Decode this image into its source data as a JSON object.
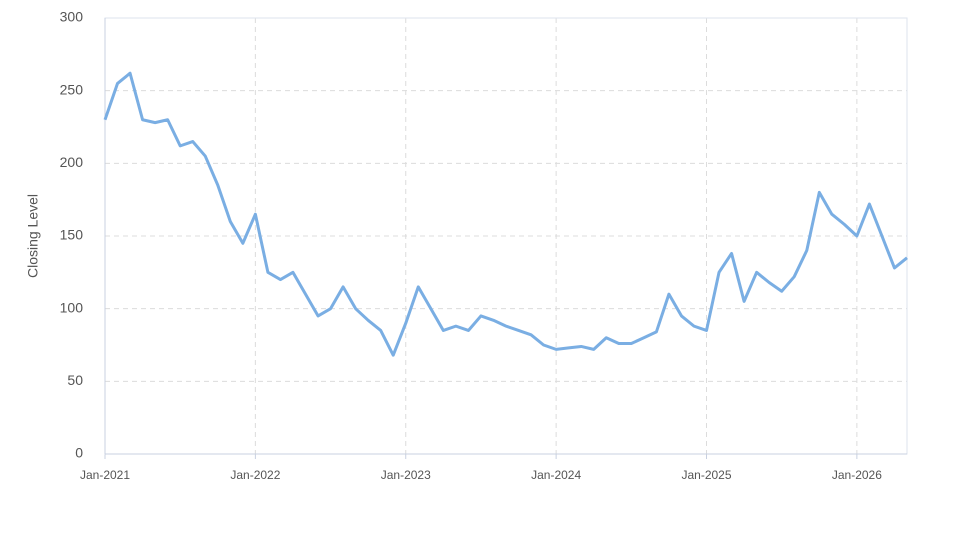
{
  "chart_data": {
    "type": "line",
    "y_label": "Closing Level",
    "x": [
      "2021-01",
      "2021-02",
      "2021-03",
      "2021-04",
      "2021-05",
      "2021-06",
      "2021-07",
      "2021-08",
      "2021-09",
      "2021-10",
      "2021-11",
      "2021-12",
      "2022-01",
      "2022-02",
      "2022-03",
      "2022-04",
      "2022-05",
      "2022-06",
      "2022-07",
      "2022-08",
      "2022-09",
      "2022-10",
      "2022-11",
      "2022-12",
      "2023-01",
      "2023-02",
      "2023-03",
      "2023-04",
      "2023-05",
      "2023-06",
      "2023-07",
      "2023-08",
      "2023-09",
      "2023-10",
      "2023-11",
      "2023-12",
      "2024-01",
      "2024-02",
      "2024-03",
      "2024-04",
      "2024-05",
      "2024-06",
      "2024-07",
      "2024-08",
      "2024-09",
      "2024-10",
      "2024-11",
      "2024-12",
      "2025-01",
      "2025-02",
      "2025-03",
      "2025-04",
      "2025-05",
      "2025-06",
      "2025-07",
      "2025-08",
      "2025-09",
      "2025-10",
      "2025-11",
      "2025-12",
      "2026-01",
      "2026-02",
      "2026-03",
      "2026-04",
      "2026-05"
    ],
    "series": [
      {
        "name": "Closing Level",
        "color": "#7aaee3",
        "values": [
          230,
          255,
          262,
          230,
          228,
          230,
          212,
          215,
          205,
          185,
          160,
          145,
          165,
          125,
          120,
          125,
          110,
          95,
          100,
          115,
          100,
          92,
          85,
          68,
          90,
          115,
          100,
          85,
          88,
          85,
          95,
          92,
          88,
          85,
          82,
          75,
          72,
          73,
          74,
          72,
          80,
          76,
          76,
          80,
          84,
          110,
          95,
          88,
          85,
          125,
          138,
          105,
          125,
          118,
          112,
          122,
          140,
          180,
          165,
          158,
          150,
          172,
          150,
          128,
          135
        ]
      }
    ],
    "xlim": [
      "2021-01",
      "2026-05"
    ],
    "xticks": [
      {
        "value": "2021-01",
        "label": "Jan-2021"
      },
      {
        "value": "2022-01",
        "label": "Jan-2022"
      },
      {
        "value": "2023-01",
        "label": "Jan-2023"
      },
      {
        "value": "2024-01",
        "label": "Jan-2024"
      },
      {
        "value": "2025-01",
        "label": "Jan-2025"
      },
      {
        "value": "2026-01",
        "label": "Jan-2026"
      }
    ],
    "ylim": [
      0,
      300
    ],
    "yticks": [
      0,
      50,
      100,
      150,
      200,
      250,
      300
    ],
    "grid": true
  }
}
